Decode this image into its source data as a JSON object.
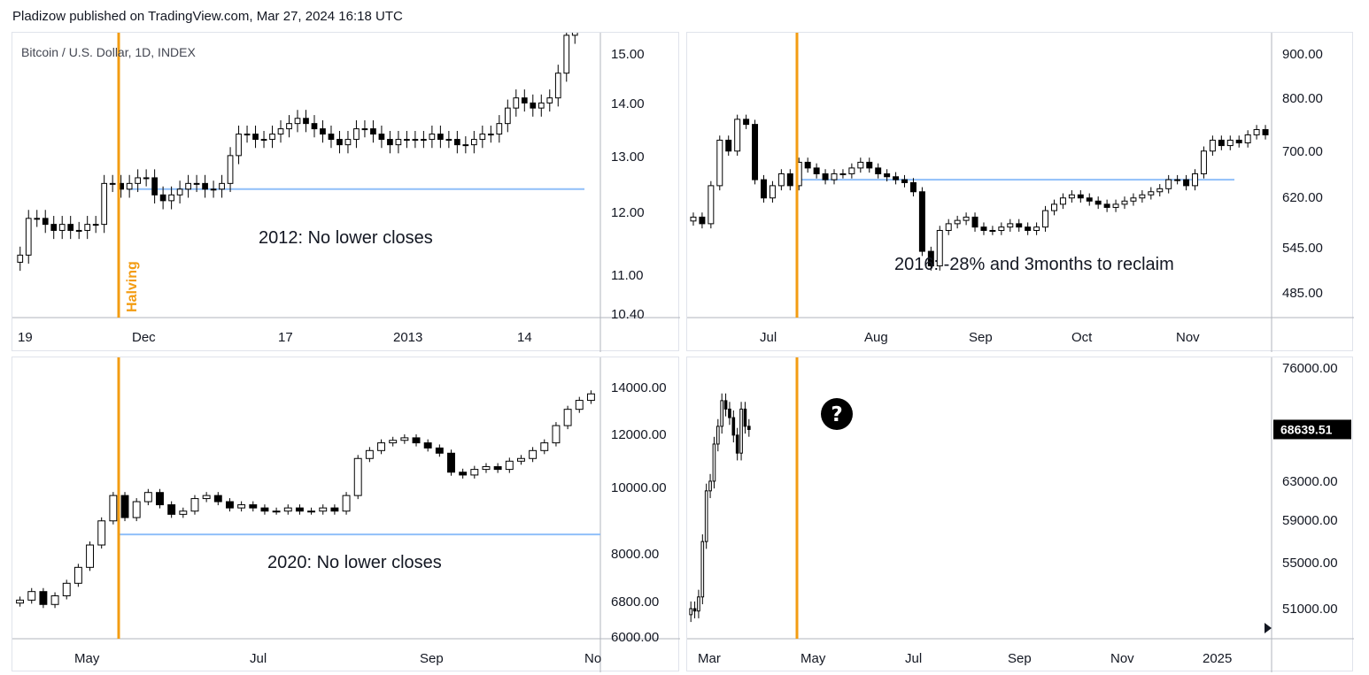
{
  "header": {
    "text": "Pladizow published on TradingView.com, Mar 27, 2024 16:18 UTC"
  },
  "colors": {
    "up": "#ffffff",
    "down": "#000000",
    "wick": "#000000",
    "halving": "#f39c12",
    "level": "#90bff9",
    "axis": "#b2b5be",
    "grid": "#e0e3eb"
  },
  "chart_data": [
    {
      "type": "candlestick",
      "symbol_label": "Bitcoin / U.S. Dollar, 1D, INDEX",
      "ylim": [
        10.4,
        15.6
      ],
      "y_scale": "log",
      "y_ticks": [
        "15.00",
        "14.00",
        "13.00",
        "12.00",
        "11.00",
        "10.40"
      ],
      "x_ticks": [
        "19",
        "Dec",
        "17",
        "2013",
        "14"
      ],
      "annotation": "2012: No lower closes",
      "halving_label": "Halving",
      "level": 12.4,
      "closes": [
        11.3,
        11.9,
        11.9,
        11.8,
        11.7,
        11.8,
        11.7,
        11.7,
        11.8,
        11.8,
        12.5,
        12.5,
        12.4,
        12.5,
        12.6,
        12.6,
        12.3,
        12.2,
        12.3,
        12.4,
        12.5,
        12.5,
        12.4,
        12.4,
        12.5,
        13.0,
        13.4,
        13.4,
        13.3,
        13.3,
        13.4,
        13.5,
        13.6,
        13.7,
        13.6,
        13.5,
        13.4,
        13.3,
        13.2,
        13.3,
        13.5,
        13.5,
        13.4,
        13.3,
        13.2,
        13.3,
        13.3,
        13.3,
        13.3,
        13.4,
        13.3,
        13.3,
        13.2,
        13.2,
        13.3,
        13.4,
        13.4,
        13.6,
        13.9,
        14.1,
        14.0,
        13.9,
        14.0,
        14.1,
        14.6,
        15.4,
        15.8
      ]
    },
    {
      "type": "candlestick",
      "ylim": [
        460,
        930
      ],
      "y_scale": "log",
      "y_ticks": [
        "900.00",
        "800.00",
        "700.00",
        "620.00",
        "545.00",
        "485.00"
      ],
      "x_ticks": [
        "Jul",
        "Aug",
        "Sep",
        "Oct",
        "Nov"
      ],
      "annotation": "2016: -28% and 3months to reclaim",
      "level": 650,
      "closes": [
        590,
        580,
        640,
        720,
        700,
        760,
        750,
        650,
        620,
        640,
        660,
        640,
        680,
        670,
        660,
        650,
        660,
        660,
        670,
        680,
        670,
        660,
        655,
        650,
        645,
        630,
        540,
        520,
        570,
        580,
        585,
        590,
        575,
        570,
        570,
        575,
        580,
        575,
        570,
        575,
        600,
        610,
        620,
        625,
        620,
        615,
        610,
        605,
        610,
        615,
        620,
        625,
        630,
        635,
        650,
        650,
        640,
        660,
        700,
        720,
        710,
        720,
        715,
        730,
        740,
        730
      ]
    },
    {
      "type": "candlestick",
      "ylim": [
        5950,
        14300
      ],
      "y_scale": "log",
      "y_ticks": [
        "14000.00",
        "12000.00",
        "10000.00",
        "8000.00",
        "6800.00",
        "6000.00"
      ],
      "x_ticks": [
        "May",
        "Jul",
        "Sep",
        "No"
      ],
      "annotation": "2020: No lower closes",
      "level": 8500,
      "closes": [
        6800,
        7000,
        6700,
        6900,
        7200,
        7600,
        8200,
        8900,
        9700,
        9000,
        9500,
        9800,
        9400,
        9100,
        9200,
        9600,
        9700,
        9500,
        9300,
        9400,
        9300,
        9200,
        9200,
        9300,
        9200,
        9200,
        9300,
        9200,
        9700,
        11000,
        11300,
        11600,
        11700,
        11800,
        11600,
        11400,
        11200,
        10500,
        10400,
        10600,
        10700,
        10600,
        10900,
        11000,
        11300,
        11600,
        12300,
        13000,
        13400,
        13700
      ]
    },
    {
      "type": "candlestick",
      "ylim": [
        48900,
        77000
      ],
      "y_scale": "log",
      "y_ticks": [
        "76000.00",
        "63000.00",
        "59000.00",
        "55000.00",
        "51000.00"
      ],
      "x_ticks": [
        "Mar",
        "May",
        "Jul",
        "Sep",
        "Nov",
        "2025"
      ],
      "last_price": "68639.51",
      "level": null,
      "closes": [
        51000,
        50800,
        52000,
        57000,
        62000,
        63000,
        67000,
        69000,
        72000,
        71000,
        70000,
        68000,
        66000,
        71000,
        69000,
        68639
      ]
    }
  ]
}
